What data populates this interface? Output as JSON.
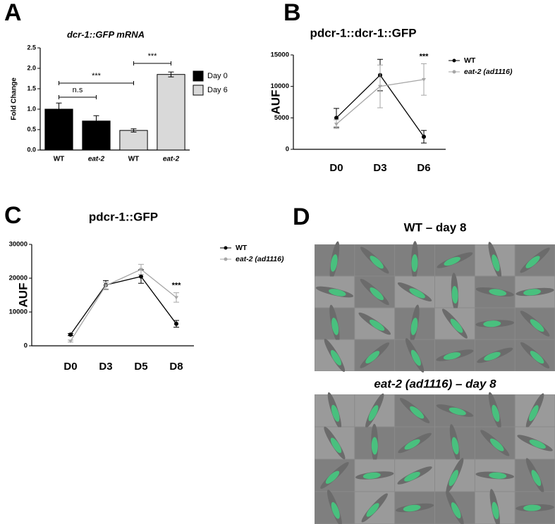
{
  "panels": [
    "A",
    "B",
    "C",
    "D"
  ],
  "images": {
    "top_title": "WT – day 8",
    "bottom_title": "eat-2 (ad1116) – day 8"
  },
  "chart_data": [
    {
      "type": "bar",
      "title": "dcr-1::GFP mRNA",
      "y_label": "Fold Change",
      "categories": [
        "WT",
        "eat-2",
        "WT",
        "eat-2"
      ],
      "series": [
        {
          "name": "Day 0",
          "color": "#000000",
          "values": [
            1.0,
            0.71,
            null,
            null
          ],
          "errors": [
            0.15,
            0.13,
            null,
            null
          ]
        },
        {
          "name": "Day 6",
          "color": "#d9d9d9",
          "values": [
            null,
            null,
            0.48,
            1.85
          ],
          "errors": [
            null,
            null,
            0.04,
            0.06
          ]
        }
      ],
      "ylim": [
        0,
        2.5
      ],
      "yticks": [
        {
          "value": 0,
          "label": "0.0"
        },
        {
          "value": 0.5,
          "label": "0.5"
        },
        {
          "value": 1,
          "label": "1.0"
        },
        {
          "value": 1.5,
          "label": "1.5"
        },
        {
          "value": 2,
          "label": "2.0"
        },
        {
          "value": 2.5,
          "label": "2.5"
        }
      ],
      "annotations": [
        "n.s",
        "***",
        "***"
      ]
    },
    {
      "type": "line",
      "title": "pdcr-1::dcr-1::GFP",
      "y_label": "AUF",
      "categories": [
        "D0",
        "D3",
        "D6"
      ],
      "series": [
        {
          "name": "WT",
          "color": "#000000",
          "values": [
            5000,
            11800,
            2000
          ],
          "errors": [
            1500,
            2500,
            1000
          ]
        },
        {
          "name": "eat-2 (ad1116)",
          "color": "#a6a6a6",
          "values": [
            4000,
            10000,
            11100
          ],
          "errors": [
            700,
            3400,
            2500
          ]
        }
      ],
      "ylim": [
        0,
        15000
      ],
      "yticks": [
        0,
        5000,
        10000,
        15000
      ],
      "annotations": [
        "***"
      ]
    },
    {
      "type": "line",
      "title": "pdcr-1::GFP",
      "y_label": "AUF",
      "categories": [
        "D0",
        "D3",
        "D5",
        "D8"
      ],
      "series": [
        {
          "name": "WT",
          "color": "#000000",
          "values": [
            3300,
            18000,
            20500,
            6500
          ],
          "errors": [
            300,
            1300,
            2000,
            1000
          ]
        },
        {
          "name": "eat-2 (ad1116)",
          "color": "#a6a6a6",
          "values": [
            1400,
            17800,
            22600,
            14300
          ],
          "errors": [
            300,
            1000,
            1500,
            1400
          ]
        }
      ],
      "ylim": [
        0,
        30000
      ],
      "yticks": [
        0,
        10000,
        20000,
        30000
      ],
      "annotations": [
        "***"
      ]
    }
  ]
}
